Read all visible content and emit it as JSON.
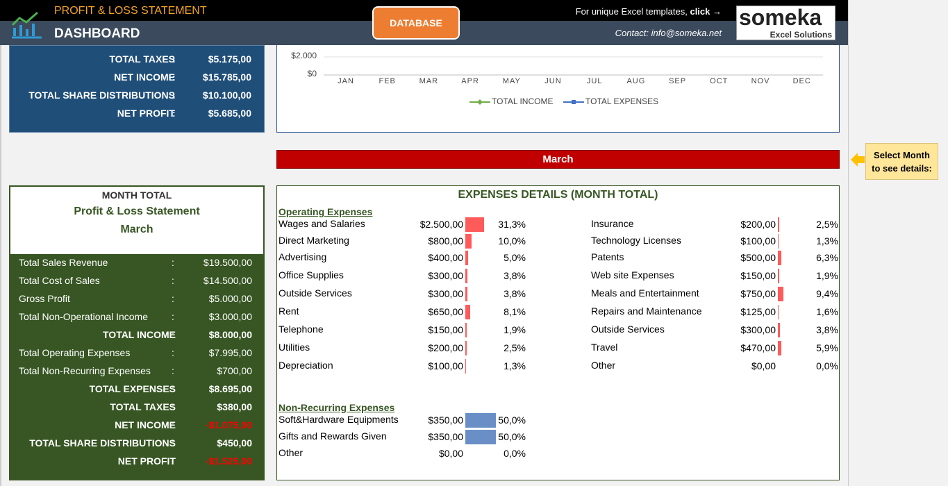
{
  "header": {
    "title": "PROFIT & LOSS STATEMENT",
    "subtitle": "DASHBOARD",
    "button": "DATABASE",
    "promo_text": "For unique Excel templates,",
    "promo_link": "click →",
    "contact": "Contact: info@someka.net",
    "logo": "someka",
    "logo_sub": "Excel Solutions"
  },
  "separator": ":",
  "top_summary": [
    {
      "label": "TOTAL TAXES",
      "value": "$5.175,00"
    },
    {
      "label": "NET INCOME",
      "value": "$15.785,00"
    },
    {
      "label": "TOTAL SHARE DISTRIBUTIONS",
      "value": "$10.100,00"
    },
    {
      "label": "NET PROFIT",
      "value": "$5.685,00"
    }
  ],
  "chart": {
    "yticks": [
      "$2.000",
      "$0"
    ],
    "months": [
      "JAN",
      "FEB",
      "MAR",
      "APR",
      "MAY",
      "JUN",
      "JUL",
      "AUG",
      "SEP",
      "OCT",
      "NOV",
      "DEC"
    ],
    "legend": [
      "TOTAL INCOME",
      "TOTAL EXPENSES"
    ]
  },
  "selected_month": "March",
  "note": [
    "Select Month",
    "to see details:"
  ],
  "month_total": {
    "heading": "MONTH TOTAL",
    "title": "Profit & Loss Statement",
    "month": "March",
    "rows": [
      {
        "label": "Total Sales Revenue",
        "value": "$19.500,00",
        "bold": false
      },
      {
        "label": "Total Cost of Sales",
        "value": "$14.500,00",
        "bold": false
      },
      {
        "label": "Gross Profit",
        "value": "$5.000,00",
        "bold": false
      },
      {
        "label": "Total Non-Operational Income",
        "value": "$3.000,00",
        "bold": false
      },
      {
        "label": "TOTAL INCOME",
        "value": "$8.000,00",
        "bold": true
      },
      {
        "label": "Total Operating Expenses",
        "value": "$7.995,00",
        "bold": false
      },
      {
        "label": "Total Non-Recurring Expenses",
        "value": "$700,00",
        "bold": false
      },
      {
        "label": "TOTAL EXPENSES",
        "value": "$8.695,00",
        "bold": true
      },
      {
        "label": "TOTAL TAXES",
        "value": "$380,00",
        "bold": true
      },
      {
        "label": "NET INCOME",
        "value": "-$1.075,00",
        "bold": true,
        "negative": true
      },
      {
        "label": "TOTAL SHARE DISTRIBUTIONS",
        "value": "$450,00",
        "bold": true
      },
      {
        "label": "NET PROFIT",
        "value": "-$1.525,00",
        "bold": true,
        "negative": true
      }
    ]
  },
  "expenses": {
    "title": "EXPENSES DETAILS (MONTH TOTAL)",
    "operating": {
      "title": "Operating Expenses",
      "items": [
        {
          "label": "Wages and Salaries",
          "amount": "$2.500,00",
          "share": "31,3%"
        },
        {
          "label": "Direct Marketing",
          "amount": "$800,00",
          "share": "10,0%"
        },
        {
          "label": "Advertising",
          "amount": "$400,00",
          "share": "5,0%"
        },
        {
          "label": "Office Supplies",
          "amount": "$300,00",
          "share": "3,8%"
        },
        {
          "label": "Outside Services",
          "amount": "$300,00",
          "share": "3,8%"
        },
        {
          "label": "Rent",
          "amount": "$650,00",
          "share": "8,1%"
        },
        {
          "label": "Telephone",
          "amount": "$150,00",
          "share": "1,9%"
        },
        {
          "label": "Utilities",
          "amount": "$200,00",
          "share": "2,5%"
        },
        {
          "label": "Depreciation",
          "amount": "$100,00",
          "share": "1,3%"
        },
        {
          "label": "Insurance",
          "amount": "$200,00",
          "share": "2,5%"
        },
        {
          "label": "Technology Licenses",
          "amount": "$100,00",
          "share": "1,3%"
        },
        {
          "label": "Patents",
          "amount": "$500,00",
          "share": "6,3%"
        },
        {
          "label": "Web site Expenses",
          "amount": "$150,00",
          "share": "1,9%"
        },
        {
          "label": "Meals and Entertainment",
          "amount": "$750,00",
          "share": "9,4%"
        },
        {
          "label": "Repairs and Maintenance",
          "amount": "$125,00",
          "share": "1,6%"
        },
        {
          "label": "Outside Services",
          "amount": "$300,00",
          "share": "3,8%"
        },
        {
          "label": "Travel",
          "amount": "$470,00",
          "share": "5,9%"
        },
        {
          "label": "Other",
          "amount": "$0,00",
          "share": "0,0%"
        }
      ]
    },
    "non_recurring": {
      "title": "Non-Recurring Expenses",
      "items": [
        {
          "label": "Soft&Hardware Equipments",
          "amount": "$350,00",
          "share": "50,0%"
        },
        {
          "label": "Gifts and Rewards Given",
          "amount": "$350,00",
          "share": "50,0%"
        },
        {
          "label": "Other",
          "amount": "$0,00",
          "share": "0,0%"
        }
      ]
    }
  }
}
